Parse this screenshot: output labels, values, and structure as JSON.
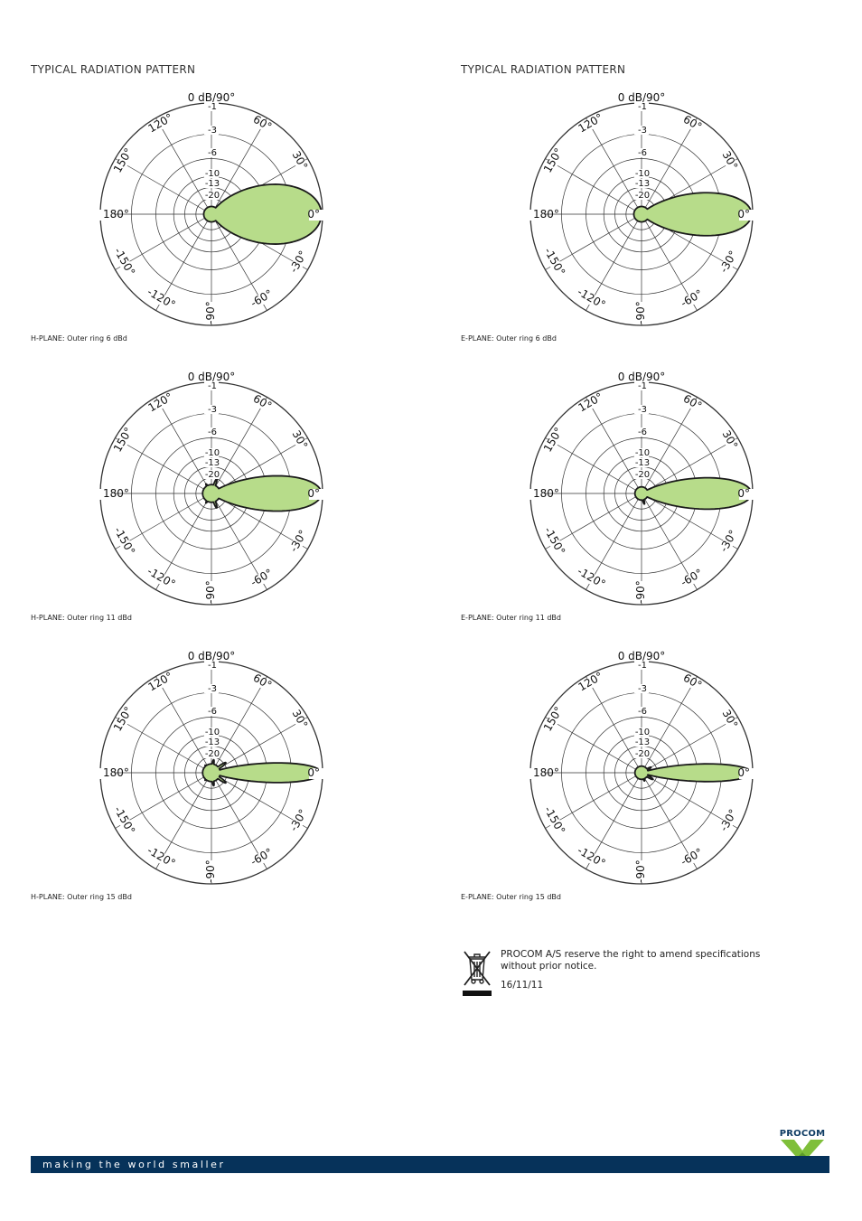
{
  "headings": {
    "left": "TYPICAL RADIATION PATTERN",
    "right": "TYPICAL RADIATION PATTERN"
  },
  "chart_data": [
    {
      "type": "polar",
      "plane": "H",
      "caption": "H-PLANE: Outer ring 6 dBd",
      "top_label": "0 dB/90°",
      "radial_labels": [
        "-1",
        "-3",
        "-6",
        "-10",
        "-13",
        "-20"
      ],
      "angle_labels": [
        "0°",
        "30°",
        "60°",
        "120°",
        "150°",
        "180°",
        "-150°",
        "-120°",
        "-90°",
        "-60°",
        "-30°"
      ],
      "pattern": {
        "beamwidth_deg": 62,
        "backlobe": 0.07,
        "sidelobes": []
      }
    },
    {
      "type": "polar",
      "plane": "E",
      "caption": "E-PLANE: Outer ring 6 dBd",
      "top_label": "0 dB/90°",
      "radial_labels": [
        "-1",
        "-3",
        "-6",
        "-10",
        "-13",
        "-20"
      ],
      "angle_labels": [
        "0°",
        "30°",
        "60°",
        "120°",
        "150°",
        "180°",
        "-150°",
        "-120°",
        "-90°",
        "-60°",
        "-30°"
      ],
      "pattern": {
        "beamwidth_deg": 44,
        "backlobe": 0.07,
        "sidelobes": []
      }
    },
    {
      "type": "polar",
      "plane": "H",
      "caption": "H-PLANE: Outer ring 11 dBd",
      "top_label": "0 dB/90°",
      "radial_labels": [
        "-1",
        "-3",
        "-6",
        "-10",
        "-13",
        "-20"
      ],
      "angle_labels": [
        "0°",
        "30°",
        "60°",
        "120°",
        "150°",
        "180°",
        "-150°",
        "-120°",
        "-90°",
        "-60°",
        "-30°"
      ],
      "pattern": {
        "beamwidth_deg": 36,
        "backlobe": 0.08,
        "sidelobes": [
          [
            70,
            0.14
          ],
          [
            -70,
            0.14
          ],
          [
            120,
            0.1
          ],
          [
            -120,
            0.1
          ]
        ]
      }
    },
    {
      "type": "polar",
      "plane": "E",
      "caption": "E-PLANE: Outer ring 11 dBd",
      "top_label": "0 dB/90°",
      "radial_labels": [
        "-1",
        "-3",
        "-6",
        "-10",
        "-13",
        "-20"
      ],
      "angle_labels": [
        "0°",
        "30°",
        "60°",
        "120°",
        "150°",
        "180°",
        "-150°",
        "-120°",
        "-90°",
        "-60°",
        "-30°"
      ],
      "pattern": {
        "beamwidth_deg": 32,
        "backlobe": 0.06,
        "sidelobes": [
          [
            -75,
            0.1
          ],
          [
            160,
            0.06
          ]
        ]
      }
    },
    {
      "type": "polar",
      "plane": "H",
      "caption": "H-PLANE: Outer ring 15 dBd",
      "top_label": "0 dB/90°",
      "radial_labels": [
        "-1",
        "-3",
        "-6",
        "-10",
        "-13",
        "-20"
      ],
      "angle_labels": [
        "0°",
        "30°",
        "60°",
        "120°",
        "150°",
        "180°",
        "-150°",
        "-120°",
        "-90°",
        "-60°",
        "-30°"
      ],
      "pattern": {
        "beamwidth_deg": 20,
        "backlobe": 0.08,
        "sidelobes": [
          [
            35,
            0.16
          ],
          [
            -35,
            0.16
          ],
          [
            80,
            0.12
          ],
          [
            -80,
            0.12
          ],
          [
            130,
            0.09
          ],
          [
            -130,
            0.09
          ]
        ]
      }
    },
    {
      "type": "polar",
      "plane": "E",
      "caption": "E-PLANE: Outer ring 15 dBd",
      "top_label": "0 dB/90°",
      "radial_labels": [
        "-1",
        "-3",
        "-6",
        "-10",
        "-13",
        "-20"
      ],
      "angle_labels": [
        "0°",
        "30°",
        "60°",
        "120°",
        "150°",
        "180°",
        "-150°",
        "-120°",
        "-90°",
        "-60°",
        "-30°"
      ],
      "pattern": {
        "beamwidth_deg": 18,
        "backlobe": 0.06,
        "sidelobes": [
          [
            30,
            0.1
          ],
          [
            -30,
            0.12
          ],
          [
            -70,
            0.08
          ]
        ]
      }
    }
  ],
  "colors": {
    "pattern_fill": "#b7dc8a",
    "pattern_stroke": "#1a1a1a",
    "footer_bar": "#06325a",
    "logo_green": "#7fbf3a"
  },
  "notice": {
    "text": "PROCOM A/S reserve the right to amend specifications without prior notice.",
    "date": "16/11/11",
    "icon": "weee-crossed-bin-icon"
  },
  "logo": {
    "text": "PROCOM"
  },
  "footer": {
    "tagline": "making the world smaller"
  }
}
